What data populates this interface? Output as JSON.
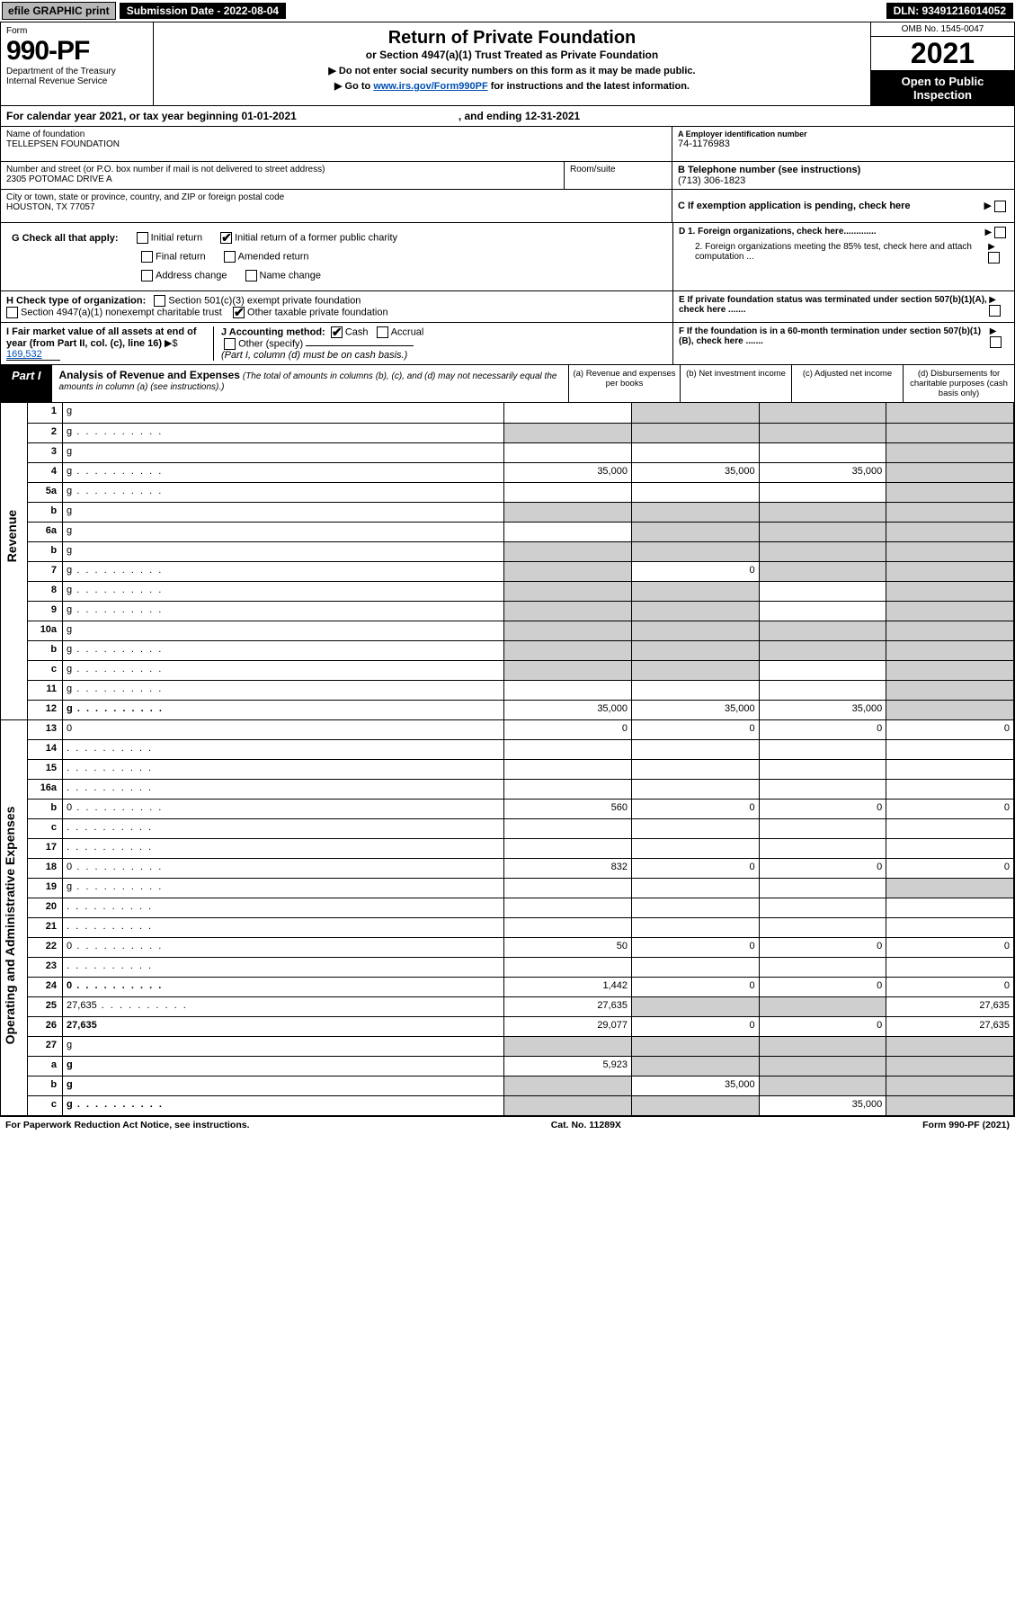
{
  "topbar": {
    "efile": "efile GRAPHIC print",
    "subdate_label": "Submission Date - 2022-08-04",
    "dln": "DLN: 93491216014052"
  },
  "header": {
    "form_label": "Form",
    "form_no": "990-PF",
    "dept": "Department of the Treasury",
    "irs": "Internal Revenue Service",
    "title": "Return of Private Foundation",
    "subtitle": "or Section 4947(a)(1) Trust Treated as Private Foundation",
    "instr1": "▶ Do not enter social security numbers on this form as it may be made public.",
    "instr2_pre": "▶ Go to ",
    "instr2_link": "www.irs.gov/Form990PF",
    "instr2_post": " for instructions and the latest information.",
    "omb": "OMB No. 1545-0047",
    "year": "2021",
    "open": "Open to Public Inspection"
  },
  "cal": {
    "text_a": "For calendar year 2021, or tax year beginning 01-01-2021",
    "text_b": ", and ending 12-31-2021"
  },
  "info": {
    "name_lbl": "Name of foundation",
    "name": "TELLEPSEN FOUNDATION",
    "addr_lbl": "Number and street (or P.O. box number if mail is not delivered to street address)",
    "addr": "2305 POTOMAC DRIVE A",
    "room_lbl": "Room/suite",
    "city_lbl": "City or town, state or province, country, and ZIP or foreign postal code",
    "city": "HOUSTON, TX  77057",
    "ein_lbl": "A Employer identification number",
    "ein": "74-1176983",
    "tel_lbl": "B Telephone number (see instructions)",
    "tel": "(713) 306-1823",
    "c_lbl": "C If exemption application is pending, check here",
    "d1": "D 1. Foreign organizations, check here.............",
    "d2": "2. Foreign organizations meeting the 85% test, check here and attach computation ...",
    "e_lbl": "E  If private foundation status was terminated under section 507(b)(1)(A), check here .......",
    "f_lbl": "F  If the foundation is in a 60-month termination under section 507(b)(1)(B), check here .......",
    "g_lbl": "G Check all that apply:",
    "g_items": [
      "Initial return",
      "Initial return of a former public charity",
      "Final return",
      "Amended return",
      "Address change",
      "Name change"
    ],
    "h_lbl": "H Check type of organization:",
    "h1": "Section 501(c)(3) exempt private foundation",
    "h2": "Section 4947(a)(1) nonexempt charitable trust",
    "h3": "Other taxable private foundation",
    "i_lbl": "I Fair market value of all assets at end of year (from Part II, col. (c), line 16)",
    "i_val": "169,532",
    "j_lbl": "J Accounting method:",
    "j_cash": "Cash",
    "j_accrual": "Accrual",
    "j_other": "Other (specify)",
    "j_note": "(Part I, column (d) must be on cash basis.)"
  },
  "part1": {
    "tab": "Part I",
    "title": "Analysis of Revenue and Expenses",
    "note": "(The total of amounts in columns (b), (c), and (d) may not necessarily equal the amounts in column (a) (see instructions).)",
    "col_a": "(a)   Revenue and expenses per books",
    "col_b": "(b)   Net investment income",
    "col_c": "(c)   Adjusted net income",
    "col_d": "(d)  Disbursements for charitable purposes (cash basis only)"
  },
  "side": {
    "rev": "Revenue",
    "exp": "Operating and Administrative Expenses"
  },
  "rows": [
    {
      "n": "1",
      "d": "g",
      "a": "",
      "b": "g",
      "c": "g"
    },
    {
      "n": "2",
      "d": "g",
      "a": "g",
      "b": "g",
      "c": "g",
      "dots": true
    },
    {
      "n": "3",
      "d": "g",
      "a": "",
      "b": "",
      "c": ""
    },
    {
      "n": "4",
      "d": "g",
      "a": "35,000",
      "b": "35,000",
      "c": "35,000",
      "dots": true
    },
    {
      "n": "5a",
      "d": "g",
      "a": "",
      "b": "",
      "c": "",
      "dots": true
    },
    {
      "n": "b",
      "d": "g",
      "a": "g",
      "b": "g",
      "c": "g",
      "inset": true
    },
    {
      "n": "6a",
      "d": "g",
      "a": "",
      "b": "g",
      "c": "g"
    },
    {
      "n": "b",
      "d": "g",
      "a": "g",
      "b": "g",
      "c": "g",
      "inset": true
    },
    {
      "n": "7",
      "d": "g",
      "a": "g",
      "b": "0",
      "c": "g",
      "dots": true
    },
    {
      "n": "8",
      "d": "g",
      "a": "g",
      "b": "g",
      "c": "",
      "dots": true
    },
    {
      "n": "9",
      "d": "g",
      "a": "g",
      "b": "g",
      "c": "",
      "dots": true
    },
    {
      "n": "10a",
      "d": "g",
      "a": "g",
      "b": "g",
      "c": "g",
      "inset": true
    },
    {
      "n": "b",
      "d": "g",
      "a": "g",
      "b": "g",
      "c": "g",
      "inset": true,
      "dots": true
    },
    {
      "n": "c",
      "d": "g",
      "a": "g",
      "b": "g",
      "c": "",
      "dots": true
    },
    {
      "n": "11",
      "d": "g",
      "a": "",
      "b": "",
      "c": "",
      "dots": true
    },
    {
      "n": "12",
      "d": "g",
      "a": "35,000",
      "b": "35,000",
      "c": "35,000",
      "bold": true,
      "dots": true
    },
    {
      "n": "13",
      "d": "0",
      "a": "0",
      "b": "0",
      "c": "0"
    },
    {
      "n": "14",
      "d": "",
      "a": "",
      "b": "",
      "c": "",
      "dots": true
    },
    {
      "n": "15",
      "d": "",
      "a": "",
      "b": "",
      "c": "",
      "dots": true
    },
    {
      "n": "16a",
      "d": "",
      "a": "",
      "b": "",
      "c": "",
      "dots": true
    },
    {
      "n": "b",
      "d": "0",
      "a": "560",
      "b": "0",
      "c": "0",
      "dots": true
    },
    {
      "n": "c",
      "d": "",
      "a": "",
      "b": "",
      "c": "",
      "dots": true
    },
    {
      "n": "17",
      "d": "",
      "a": "",
      "b": "",
      "c": "",
      "dots": true
    },
    {
      "n": "18",
      "d": "0",
      "a": "832",
      "b": "0",
      "c": "0",
      "dots": true
    },
    {
      "n": "19",
      "d": "g",
      "a": "",
      "b": "",
      "c": "",
      "dots": true
    },
    {
      "n": "20",
      "d": "",
      "a": "",
      "b": "",
      "c": "",
      "dots": true
    },
    {
      "n": "21",
      "d": "",
      "a": "",
      "b": "",
      "c": "",
      "dots": true
    },
    {
      "n": "22",
      "d": "0",
      "a": "50",
      "b": "0",
      "c": "0",
      "dots": true
    },
    {
      "n": "23",
      "d": "",
      "a": "",
      "b": "",
      "c": "",
      "dots": true
    },
    {
      "n": "24",
      "d": "0",
      "a": "1,442",
      "b": "0",
      "c": "0",
      "bold": true,
      "dots": true
    },
    {
      "n": "25",
      "d": "27,635",
      "a": "27,635",
      "b": "g",
      "c": "g",
      "dots": true
    },
    {
      "n": "26",
      "d": "27,635",
      "a": "29,077",
      "b": "0",
      "c": "0",
      "bold": true
    },
    {
      "n": "27",
      "d": "g",
      "a": "g",
      "b": "g",
      "c": "g"
    },
    {
      "n": "a",
      "d": "g",
      "a": "5,923",
      "b": "g",
      "c": "g",
      "bold": true
    },
    {
      "n": "b",
      "d": "g",
      "a": "g",
      "b": "35,000",
      "c": "g",
      "bold": true
    },
    {
      "n": "c",
      "d": "g",
      "a": "g",
      "b": "g",
      "c": "35,000",
      "bold": true,
      "dots": true
    }
  ],
  "footer": {
    "left": "For Paperwork Reduction Act Notice, see instructions.",
    "mid": "Cat. No. 11289X",
    "right": "Form 990-PF (2021)"
  },
  "colors": {
    "grey": "#cfcfcf",
    "link": "#0050b3",
    "black": "#000000",
    "topbtn": "#b8b8b8"
  }
}
